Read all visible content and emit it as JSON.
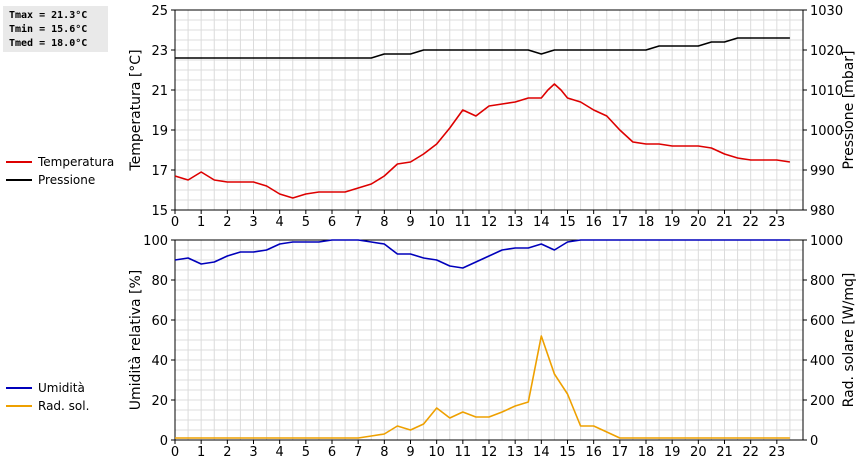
{
  "stats": {
    "tmax": "Tmax = 21.3°C",
    "tmin": "Tmin = 15.6°C",
    "tmed": "Tmed = 18.0°C"
  },
  "legend_top": [
    {
      "label": "Temperatura",
      "color": "#dd0000"
    },
    {
      "label": "Pressione",
      "color": "#000000"
    }
  ],
  "legend_bottom": [
    {
      "label": "Umidità",
      "color": "#0000bb"
    },
    {
      "label": "Rad. sol.",
      "color": "#eea000"
    }
  ],
  "chart_data": [
    {
      "type": "line",
      "xlabel": "",
      "xlim": [
        0,
        24
      ],
      "xticks": [
        0,
        1,
        2,
        3,
        4,
        5,
        6,
        7,
        8,
        9,
        10,
        11,
        12,
        13,
        14,
        15,
        16,
        17,
        18,
        19,
        20,
        21,
        22,
        23
      ],
      "y_left": {
        "label": "Temperatura [°C]",
        "lim": [
          15,
          25
        ],
        "ticks": [
          15,
          17,
          19,
          21,
          23,
          25
        ]
      },
      "y_right": {
        "label": "Pressione [mbar]",
        "lim": [
          980,
          1030
        ],
        "ticks": [
          980,
          990,
          1000,
          1010,
          1020,
          1030
        ]
      },
      "grid": true,
      "series": [
        {
          "name": "Temperatura",
          "axis": "left",
          "color": "#dd0000",
          "x": [
            0,
            0.5,
            1,
            1.5,
            2,
            2.5,
            3,
            3.5,
            4,
            4.5,
            5,
            5.5,
            6,
            6.5,
            7,
            7.5,
            8,
            8.5,
            9,
            9.5,
            10,
            10.5,
            11,
            11.5,
            12,
            12.5,
            13,
            13.5,
            14,
            14.25,
            14.5,
            14.75,
            15,
            15.5,
            16,
            16.5,
            17,
            17.5,
            18,
            18.5,
            19,
            19.5,
            20,
            20.5,
            21,
            21.5,
            22,
            22.5,
            23,
            23.5
          ],
          "y": [
            16.7,
            16.5,
            16.9,
            16.5,
            16.4,
            16.4,
            16.4,
            16.2,
            15.8,
            15.6,
            15.8,
            15.9,
            15.9,
            15.9,
            16.1,
            16.3,
            16.7,
            17.3,
            17.4,
            17.8,
            18.3,
            19.1,
            20.0,
            19.7,
            20.2,
            20.3,
            20.4,
            20.6,
            20.6,
            21.0,
            21.3,
            21.0,
            20.6,
            20.4,
            20.0,
            19.7,
            19.0,
            18.4,
            18.3,
            18.3,
            18.2,
            18.2,
            18.2,
            18.1,
            17.8,
            17.6,
            17.5,
            17.5,
            17.5,
            17.4
          ]
        },
        {
          "name": "Pressione",
          "axis": "right",
          "color": "#000000",
          "x": [
            0,
            7.5,
            8,
            8.5,
            9,
            9.5,
            10,
            10.5,
            11,
            11.5,
            12,
            12.5,
            13,
            13.5,
            14,
            14.5,
            15,
            15.5,
            16,
            16.5,
            17,
            17.5,
            18,
            18.5,
            19,
            19.5,
            20,
            20.5,
            21,
            21.5,
            22,
            22.5,
            23,
            23.5
          ],
          "y": [
            1018,
            1018,
            1019,
            1019,
            1019,
            1020,
            1020,
            1020,
            1020,
            1020,
            1020,
            1020,
            1020,
            1020,
            1019,
            1020,
            1020,
            1020,
            1020,
            1020,
            1020,
            1020,
            1020,
            1021,
            1021,
            1021,
            1021,
            1022,
            1022,
            1023,
            1023,
            1023,
            1023,
            1023
          ]
        }
      ]
    },
    {
      "type": "line",
      "xlabel": "",
      "xlim": [
        0,
        24
      ],
      "xticks": [
        0,
        1,
        2,
        3,
        4,
        5,
        6,
        7,
        8,
        9,
        10,
        11,
        12,
        13,
        14,
        15,
        16,
        17,
        18,
        19,
        20,
        21,
        22,
        23
      ],
      "y_left": {
        "label": "Umidità relativa [%]",
        "lim": [
          0,
          100
        ],
        "ticks": [
          0,
          20,
          40,
          60,
          80,
          100
        ]
      },
      "y_right": {
        "label": "Rad. solare [W/mq]",
        "lim": [
          0,
          1000
        ],
        "ticks": [
          0,
          200,
          400,
          600,
          800,
          1000
        ]
      },
      "grid": true,
      "series": [
        {
          "name": "Umidità",
          "axis": "left",
          "color": "#0000bb",
          "x": [
            0,
            0.5,
            1,
            1.5,
            2,
            2.5,
            3,
            3.5,
            4,
            4.5,
            5,
            5.5,
            6,
            6.5,
            7,
            7.5,
            8,
            8.5,
            9,
            9.5,
            10,
            10.5,
            11,
            11.5,
            12,
            12.5,
            13,
            13.5,
            14,
            14.5,
            15,
            15.5,
            16,
            23.5
          ],
          "y": [
            90,
            91,
            88,
            89,
            92,
            94,
            94,
            95,
            98,
            99,
            99,
            99,
            100,
            100,
            100,
            99,
            98,
            93,
            93,
            91,
            90,
            87,
            86,
            89,
            92,
            95,
            96,
            96,
            98,
            95,
            99,
            100,
            100,
            100
          ]
        },
        {
          "name": "Rad. sol.",
          "axis": "right",
          "color": "#eea000",
          "x": [
            0,
            7,
            7.5,
            8,
            8.5,
            9,
            9.5,
            10,
            10.5,
            11,
            11.5,
            12,
            12.5,
            13,
            13.5,
            14,
            14.5,
            15,
            15.5,
            16,
            16.5,
            17,
            23.5
          ],
          "y": [
            10,
            10,
            20,
            30,
            70,
            50,
            80,
            160,
            110,
            140,
            115,
            115,
            140,
            170,
            190,
            520,
            330,
            230,
            70,
            70,
            40,
            10,
            10
          ]
        }
      ]
    }
  ]
}
